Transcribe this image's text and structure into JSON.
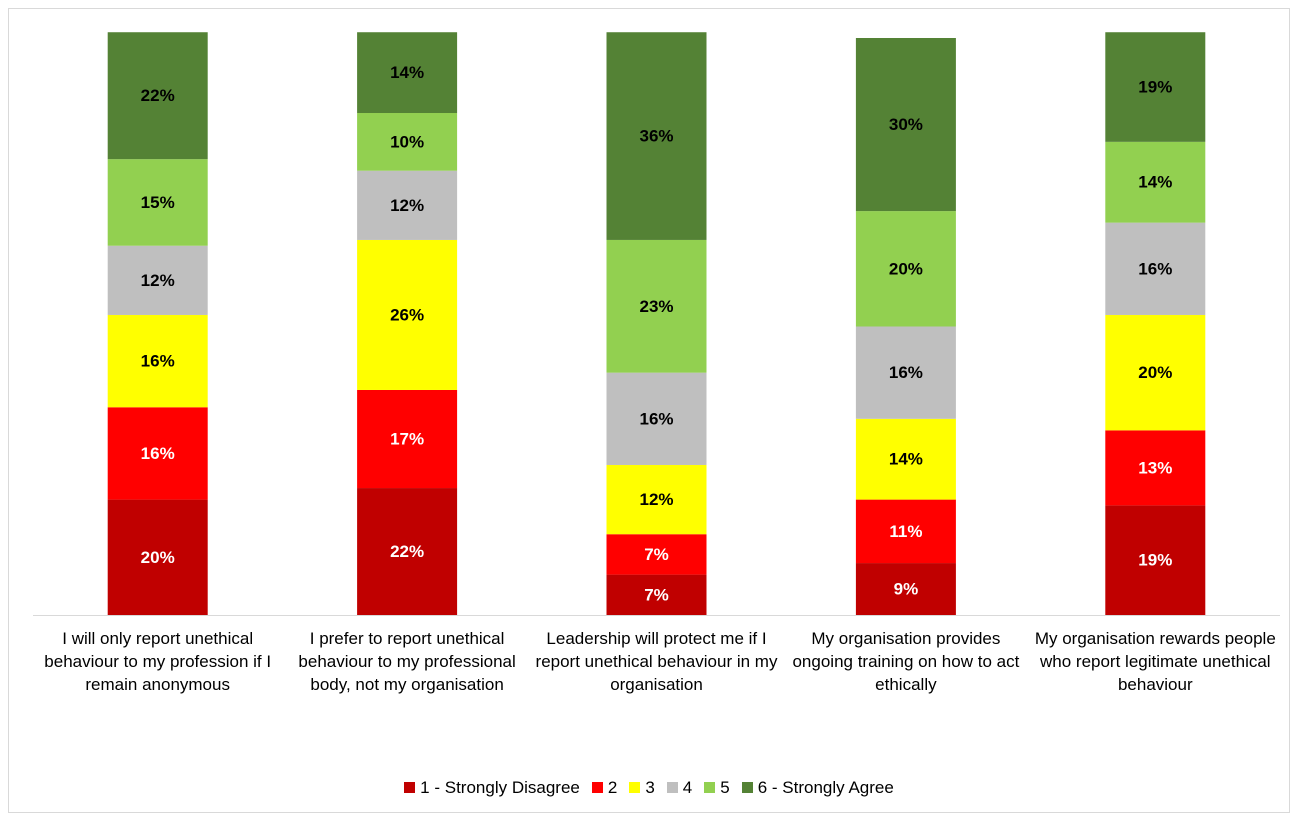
{
  "chart_data": {
    "type": "stacked_bar",
    "categories": [
      "I will only report unethical behaviour to my profession if I remain anonymous",
      "I prefer to report unethical behaviour to my professional body, not my organisation",
      "Leadership will protect me if I report unethical behaviour in my organisation",
      "My organisation provides ongoing training on how to act ethically",
      "My organisation rewards people who report legitimate unethical behaviour"
    ],
    "series": [
      {
        "name": "1 - Strongly Disagree",
        "color": "#c00000",
        "label_color": "#ffffff",
        "values": [
          20,
          22,
          7,
          9,
          19
        ],
        "value_labels": [
          "20%",
          "22%",
          "7%",
          "9%",
          "19%"
        ]
      },
      {
        "name": "2",
        "color": "#ff0000",
        "label_color": "#ffffff",
        "values": [
          16,
          17,
          7,
          11,
          13
        ],
        "value_labels": [
          "16%",
          "17%",
          "7%",
          "11%",
          "13%"
        ]
      },
      {
        "name": "3",
        "color": "#ffff00",
        "label_color": "#000000",
        "values": [
          16,
          26,
          12,
          14,
          20
        ],
        "value_labels": [
          "16%",
          "26%",
          "12%",
          "14%",
          "20%"
        ]
      },
      {
        "name": "4",
        "color": "#bfbfbf",
        "label_color": "#000000",
        "values": [
          12,
          12,
          16,
          16,
          16
        ],
        "value_labels": [
          "12%",
          "12%",
          "16%",
          "16%",
          "16%"
        ]
      },
      {
        "name": "5",
        "color": "#92d050",
        "label_color": "#000000",
        "values": [
          15,
          10,
          23,
          20,
          14
        ],
        "value_labels": [
          "15%",
          "10%",
          "23%",
          "20%",
          "14%"
        ]
      },
      {
        "name": "6 - Strongly Agree",
        "color": "#548235",
        "label_color": "#000000",
        "values": [
          22,
          14,
          36,
          30,
          19
        ],
        "value_labels": [
          "22%",
          "14%",
          "36%",
          "30%",
          "19%"
        ]
      }
    ],
    "ylim": [
      0,
      100
    ],
    "legend": "bottom"
  }
}
